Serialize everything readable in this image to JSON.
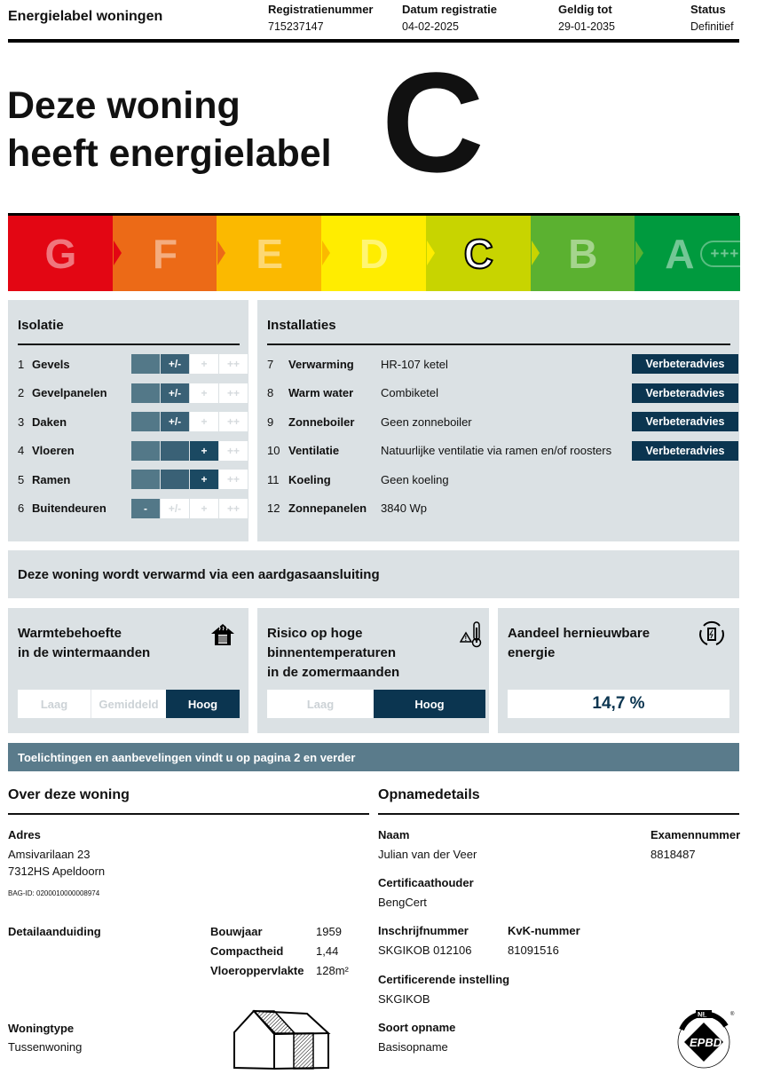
{
  "header": {
    "title": "Energielabel woningen",
    "fields": [
      {
        "label": "Registratienummer",
        "value": "715237147"
      },
      {
        "label": "Datum registratie",
        "value": "04-02-2025"
      },
      {
        "label": "Geldig tot",
        "value": "29-01-2035"
      },
      {
        "label": "Status",
        "value": "Definitief"
      }
    ]
  },
  "hero": {
    "line1": "Deze woning",
    "line2": "heeft energielabel",
    "label": "C"
  },
  "scale": {
    "current": "C",
    "segments": [
      {
        "letter": "G",
        "color": "#e30613"
      },
      {
        "letter": "F",
        "color": "#ec6a17"
      },
      {
        "letter": "E",
        "color": "#fbb900"
      },
      {
        "letter": "D",
        "color": "#ffed00"
      },
      {
        "letter": "C",
        "color": "#c8d400"
      },
      {
        "letter": "B",
        "color": "#5bb130"
      },
      {
        "letter": "A",
        "color": "#009a3e"
      }
    ],
    "a_suffix": "++++"
  },
  "isolatie": {
    "title": "Isolatie",
    "scale": [
      "-",
      "+/-",
      "+",
      "++"
    ],
    "items": [
      {
        "num": "1",
        "label": "Gevels",
        "level": 2
      },
      {
        "num": "2",
        "label": "Gevelpanelen",
        "level": 2
      },
      {
        "num": "3",
        "label": "Daken",
        "level": 2
      },
      {
        "num": "4",
        "label": "Vloeren",
        "level": 3
      },
      {
        "num": "5",
        "label": "Ramen",
        "level": 3
      },
      {
        "num": "6",
        "label": "Buitendeuren",
        "level": 1
      }
    ]
  },
  "installaties": {
    "title": "Installaties",
    "items": [
      {
        "num": "7",
        "label": "Verwarming",
        "value": "HR-107 ketel",
        "button": "Verbeteradvies"
      },
      {
        "num": "8",
        "label": "Warm water",
        "value": "Combiketel",
        "button": "Verbeteradvies"
      },
      {
        "num": "9",
        "label": "Zonneboiler",
        "value": "Geen zonneboiler",
        "button": "Verbeteradvies"
      },
      {
        "num": "10",
        "label": "Ventilatie",
        "value": "Natuurlijke ventilatie via ramen en/of roosters",
        "button": "Verbeteradvies"
      },
      {
        "num": "11",
        "label": "Koeling",
        "value": "Geen koeling"
      },
      {
        "num": "12",
        "label": "Zonnepanelen",
        "value": "3840 Wp"
      }
    ]
  },
  "verwarming_banner": "Deze woning wordt verwarmd via een aardgasaansluiting",
  "cards": {
    "warmte": {
      "line1": "Warmtebehoefte",
      "line2": "in de wintermaanden",
      "options": [
        "Laag",
        "Gemiddeld",
        "Hoog"
      ],
      "selected": "Hoog",
      "icon": "house-heating-icon"
    },
    "risico": {
      "line1": "Risico op hoge",
      "line2": "binnentemperaturen",
      "line3": "in de zomermaanden",
      "options": [
        "Laag",
        "Hoog"
      ],
      "selected": "Hoog",
      "icon": "thermometer-warning-icon"
    },
    "hernieuwbaar": {
      "line1": "Aandeel hernieuwbare",
      "line2": "energie",
      "value": "14,7 %",
      "icon": "renewable-battery-icon"
    }
  },
  "toelichting": "Toelichtingen en aanbevelingen vindt u op pagina 2 en verder",
  "woning": {
    "title": "Over deze woning",
    "adres_label": "Adres",
    "adres1": "Amsivarilaan 23",
    "adres2": "7312HS Apeldoorn",
    "bag": "BAG-ID: 0200010000008974",
    "detail_label": "Detailaanduiding",
    "bouwjaar_label": "Bouwjaar",
    "bouwjaar": "1959",
    "compact_label": "Compactheid",
    "compact": "1,44",
    "opp_label": "Vloeroppervlakte",
    "opp": "128m²",
    "type_label": "Woningtype",
    "type": "Tussenwoning"
  },
  "opname": {
    "title": "Opnamedetails",
    "naam_label": "Naam",
    "naam": "Julian van der Veer",
    "examen_label": "Examennummer",
    "examen": "8818487",
    "cert_label": "Certificaathouder",
    "cert": "BengCert",
    "inschrijf_label": "Inschrijfnummer",
    "inschrijf": "SKGIKOB 012106",
    "kvk_label": "KvK-nummer",
    "kvk": "81091516",
    "instelling_label": "Certificerende instelling",
    "instelling": "SKGIKOB",
    "soort_label": "Soort opname",
    "soort": "Basisopname",
    "logo_text": "NL EPBD ENERGY PERFORMANCE OF BUILDINGS DIRECTIVE"
  }
}
